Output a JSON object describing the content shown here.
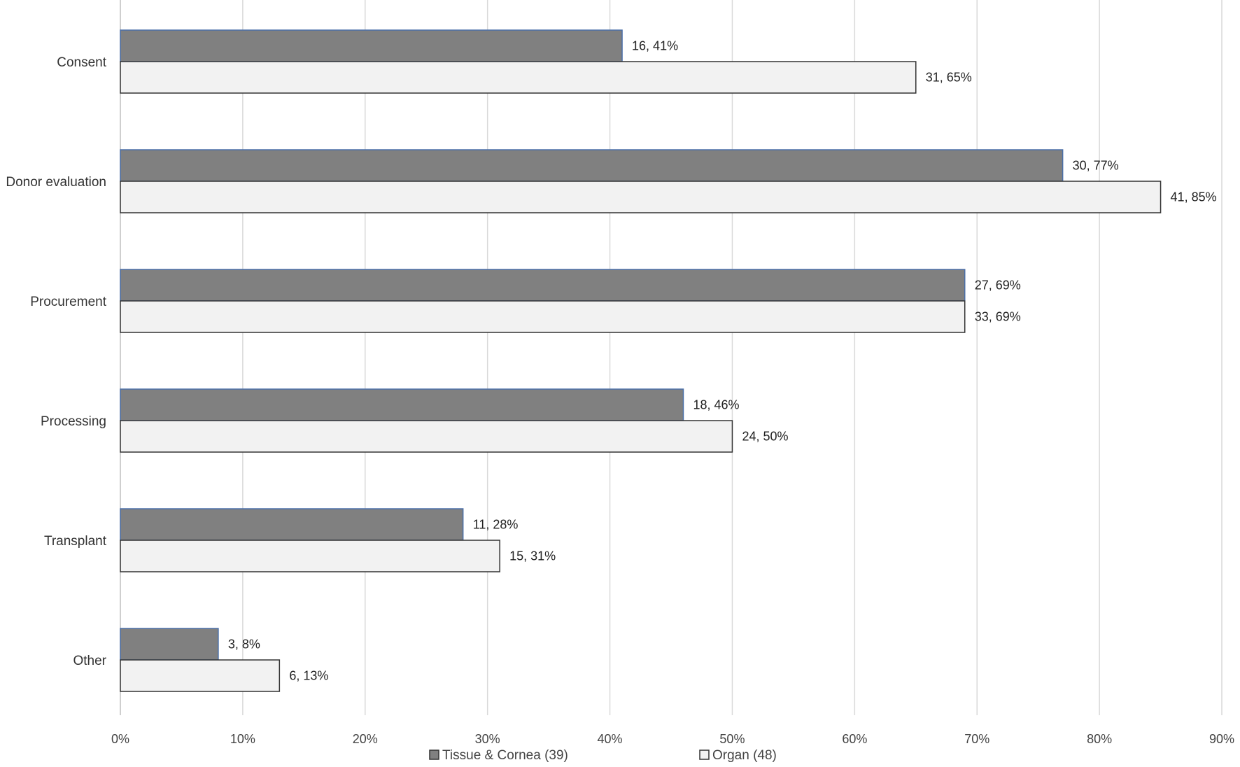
{
  "chart_data": {
    "type": "bar",
    "orientation": "horizontal",
    "categories": [
      "Consent",
      "Donor evaluation",
      "Procurement",
      "Processing",
      "Transplant",
      "Other"
    ],
    "series": [
      {
        "name": "Tissue & Cornea (39)",
        "color": "#808080",
        "stroke": "#4a6fa8",
        "values": [
          41,
          77,
          69,
          46,
          28,
          8
        ],
        "labels": [
          "16, 41%",
          "30, 77%",
          "27, 69%",
          "18, 46%",
          "11, 28%",
          "3, 8%"
        ]
      },
      {
        "name": "Organ (48)",
        "color": "#f2f2f2",
        "stroke": "#333333",
        "values": [
          65,
          85,
          69,
          50,
          31,
          13
        ],
        "labels": [
          "31, 65%",
          "41, 85%",
          "33, 69%",
          "24, 50%",
          "15, 31%",
          "6, 13%"
        ]
      }
    ],
    "xlim": [
      0,
      90
    ],
    "xticks": [
      0,
      10,
      20,
      30,
      40,
      50,
      60,
      70,
      80,
      90
    ],
    "xtick_labels": [
      "0%",
      "10%",
      "20%",
      "30%",
      "40%",
      "50%",
      "60%",
      "70%",
      "80%",
      "90%"
    ],
    "grid": true,
    "legend_position": "bottom-center"
  }
}
